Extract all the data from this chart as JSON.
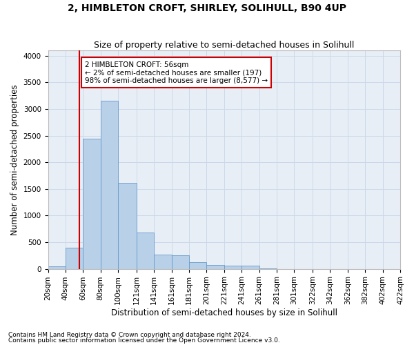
{
  "title": "2, HIMBLETON CROFT, SHIRLEY, SOLIHULL, B90 4UP",
  "subtitle": "Size of property relative to semi-detached houses in Solihull",
  "xlabel": "Distribution of semi-detached houses by size in Solihull",
  "ylabel": "Number of semi-detached properties",
  "footnote1": "Contains HM Land Registry data © Crown copyright and database right 2024.",
  "footnote2": "Contains public sector information licensed under the Open Government Licence v3.0.",
  "annotation_title": "2 HIMBLETON CROFT: 56sqm",
  "annotation_line2": "← 2% of semi-detached houses are smaller (197)",
  "annotation_line3": "98% of semi-detached houses are larger (8,577) →",
  "bar_left_edges": [
    20,
    40,
    60,
    80,
    100,
    121,
    141,
    161,
    181,
    201,
    221,
    241,
    261,
    281,
    301,
    322,
    342,
    362,
    382,
    402
  ],
  "bar_widths": [
    20,
    20,
    20,
    20,
    21,
    20,
    20,
    20,
    20,
    20,
    20,
    20,
    20,
    20,
    21,
    20,
    20,
    20,
    20,
    20
  ],
  "bar_heights": [
    50,
    400,
    2450,
    3150,
    1620,
    680,
    270,
    260,
    130,
    70,
    60,
    60,
    5,
    0,
    0,
    0,
    0,
    0,
    0,
    0
  ],
  "bar_color": "#b8d0e8",
  "bar_edge_color": "#6699cc",
  "property_x": 56,
  "property_line_color": "#cc0000",
  "annotation_box_color": "#cc0000",
  "annotation_bg": "#ffffff",
  "grid_color": "#ccd8ea",
  "bg_color": "#e8eef5",
  "ylim": [
    0,
    4100
  ],
  "yticks": [
    0,
    500,
    1000,
    1500,
    2000,
    2500,
    3000,
    3500,
    4000
  ],
  "xtick_positions": [
    20,
    40,
    60,
    80,
    100,
    121,
    141,
    161,
    181,
    201,
    221,
    241,
    261,
    281,
    301,
    322,
    342,
    362,
    382,
    402,
    422
  ],
  "xtick_labels": [
    "20sqm",
    "40sqm",
    "60sqm",
    "80sqm",
    "100sqm",
    "121sqm",
    "141sqm",
    "161sqm",
    "181sqm",
    "201sqm",
    "221sqm",
    "241sqm",
    "261sqm",
    "281sqm",
    "301sqm",
    "322sqm",
    "342sqm",
    "362sqm",
    "382sqm",
    "402sqm",
    "422sqm"
  ],
  "title_fontsize": 10,
  "subtitle_fontsize": 9,
  "axis_label_fontsize": 8.5,
  "tick_fontsize": 7.5,
  "annotation_fontsize": 7.5,
  "footnote_fontsize": 6.5
}
